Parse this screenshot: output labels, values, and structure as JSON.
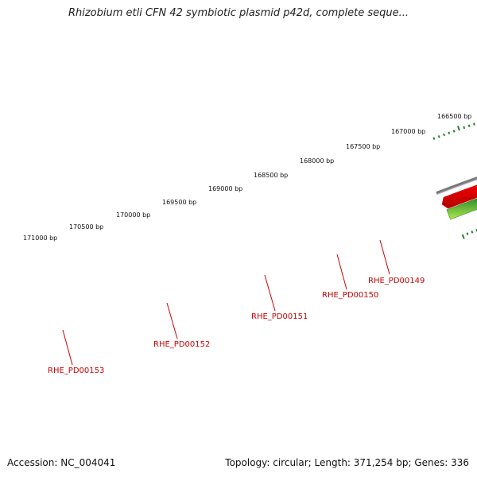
{
  "title": "Rhizobium etli CFN 42 symbiotic plasmid p42d, complete seque...",
  "footer": {
    "accession": "Accession: NC_004041",
    "info": "Topology: circular; Length: 371,254 bp; Genes: 336"
  },
  "colors": {
    "backbone": "#808080",
    "forward_gene": "#ee0000",
    "reverse_gene": "#aaee33",
    "reverse_gene_dark": "#2a7f2a",
    "tick": "#2a7f2a",
    "label": "#cc0000"
  },
  "scale": {
    "tick_labels": [
      "166500 bp",
      "167000 bp",
      "167500 bp",
      "168000 bp",
      "168500 bp",
      "169000 bp",
      "169500 bp",
      "170000 bp",
      "170500 bp",
      "171000 bp"
    ]
  },
  "genes": [
    {
      "label": "RHE_PD00149"
    },
    {
      "label": "RHE_PD00150"
    },
    {
      "label": "RHE_PD00151"
    },
    {
      "label": "RHE_PD00152"
    },
    {
      "label": "RHE_PD00153"
    }
  ]
}
